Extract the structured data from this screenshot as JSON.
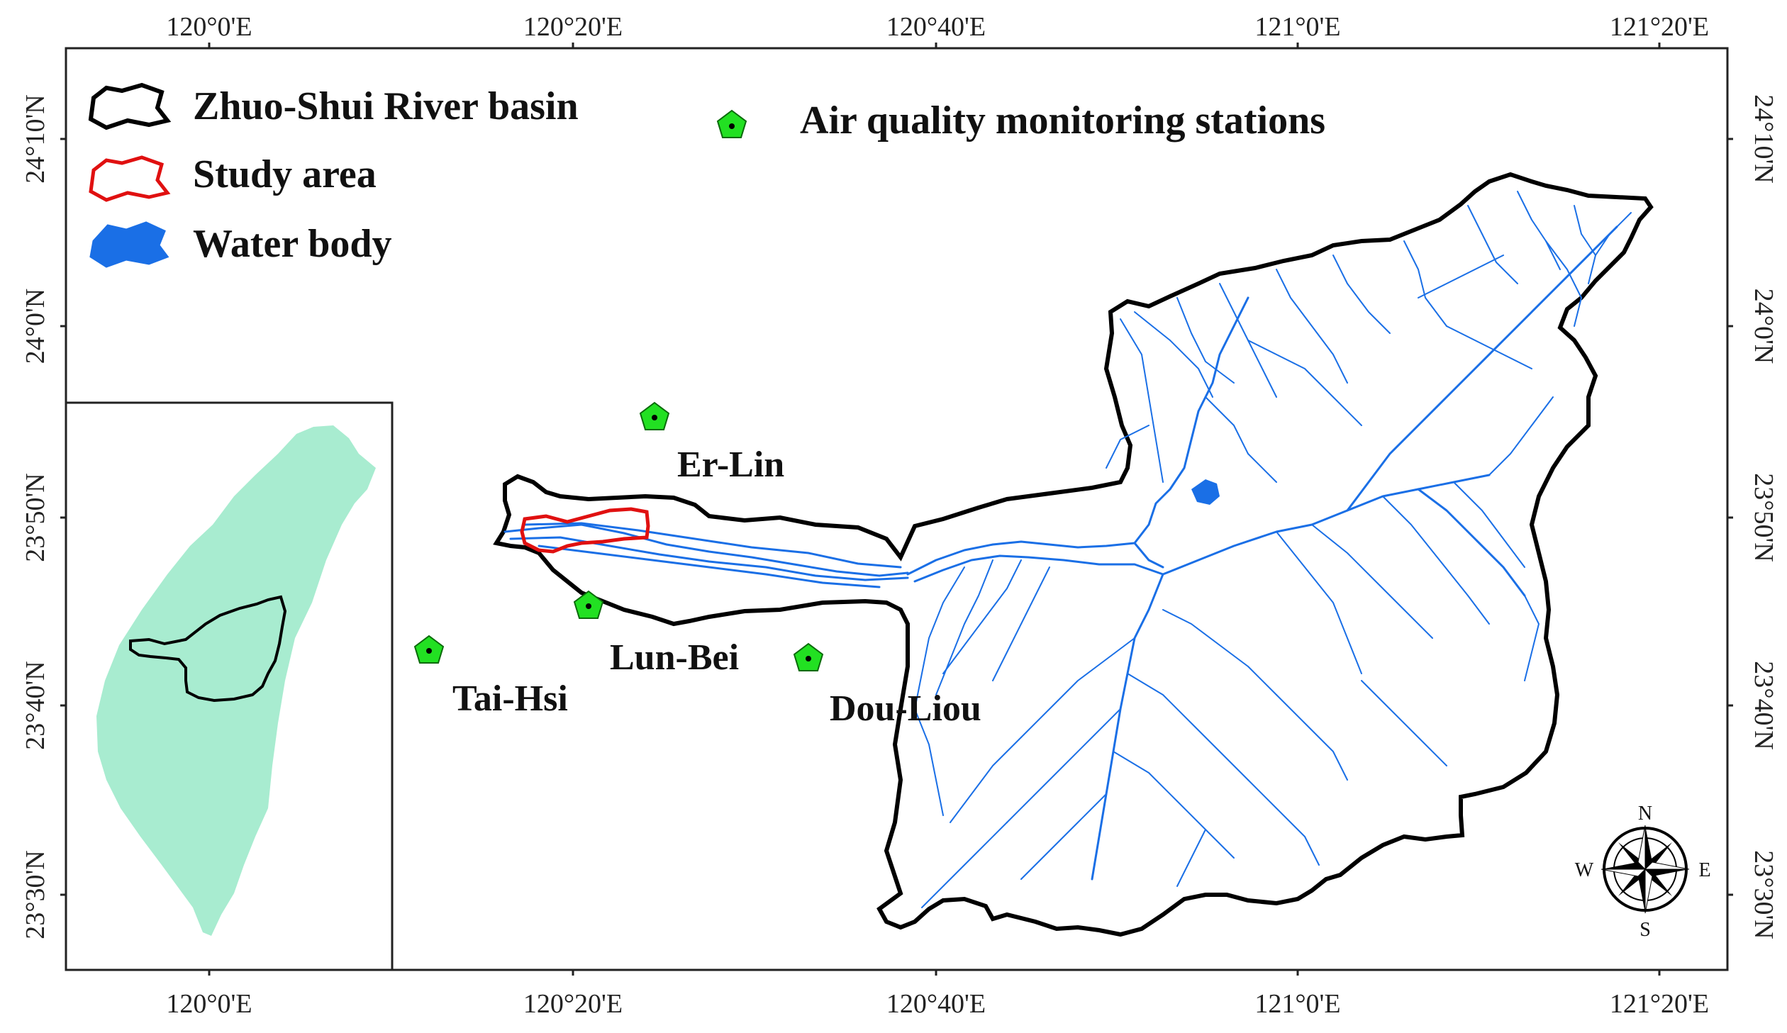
{
  "legend": {
    "basin_label": "Zhuo-Shui River basin",
    "study_area_label": "Study area",
    "water_body_label": "Water body",
    "stations_label": "Air quality monitoring stations"
  },
  "axes": {
    "top": [
      "120°0'E",
      "120°20'E",
      "120°40'E",
      "121°0'E",
      "121°20'E"
    ],
    "bottom": [
      "120°0'E",
      "120°20'E",
      "120°40'E",
      "121°0'E",
      "121°20'E"
    ],
    "left": [
      "24°10'N",
      "24°0'N",
      "23°50'N",
      "23°40'N",
      "23°30'N"
    ],
    "right": [
      "24°10'N",
      "24°0'N",
      "23°50'N",
      "23°40'N",
      "23°30'N"
    ]
  },
  "stations": [
    {
      "name": "Er-Lin"
    },
    {
      "name": "Lun-Bei"
    },
    {
      "name": "Tai-Hsi"
    },
    {
      "name": "Dou-Liou"
    }
  ],
  "compass": {
    "n": "N",
    "s": "S",
    "e": "E",
    "w": "W"
  },
  "colors": {
    "basin_outline": "#000000",
    "study_area": "#e01010",
    "water": "#1a6fe6",
    "station_fill": "#22e022",
    "taiwan_fill": "#a8ecd0"
  }
}
